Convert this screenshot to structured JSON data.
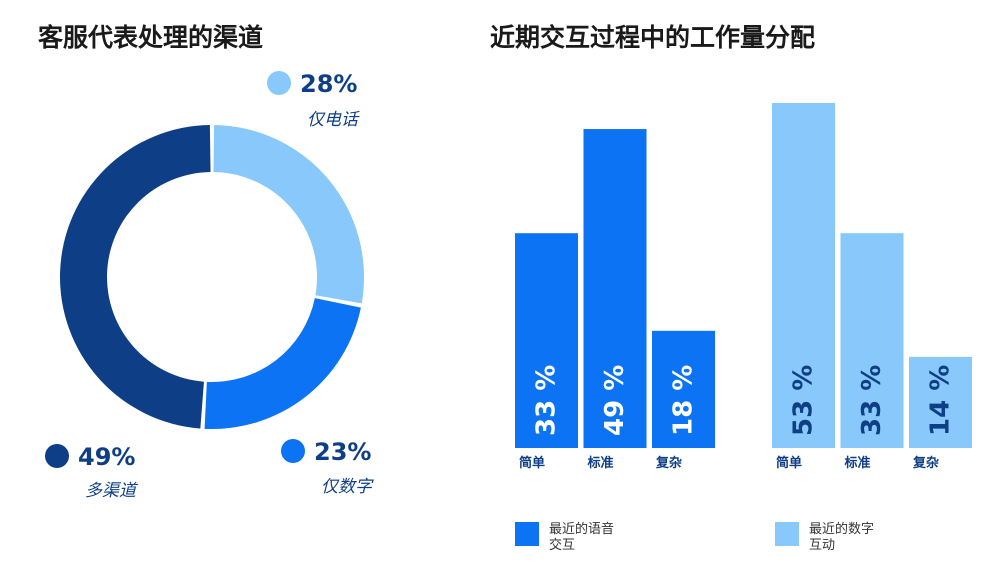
{
  "left": {
    "title": "客服代表处理的渠道"
  },
  "right": {
    "title": "近期交互过程中的工作量分配"
  },
  "colors": {
    "dark_blue": "#0E3E85",
    "bright_blue": "#0B73F4",
    "light_blue": "#88C8FB",
    "text_dark": "#1a1a1a"
  },
  "chart_data": [
    {
      "type": "pie",
      "title": "客服代表处理的渠道",
      "slices": [
        {
          "label": "仅电话",
          "value": 28,
          "value_label": "28%",
          "color": "#88C8FB"
        },
        {
          "label": "仅数字",
          "value": 23,
          "value_label": "23%",
          "color": "#0B73F4"
        },
        {
          "label": "多渠道",
          "value": 49,
          "value_label": "49%",
          "color": "#0E3E85"
        }
      ]
    },
    {
      "type": "bar",
      "title": "近期交互过程中的工作量分配",
      "categories": [
        "简单",
        "标准",
        "复杂"
      ],
      "series": [
        {
          "name": "最近的语音交互",
          "values": [
            33,
            49,
            18
          ],
          "value_labels": [
            "33 %",
            "49 %",
            "18 %"
          ],
          "color": "#0B73F4"
        },
        {
          "name": "最近的数字互动",
          "values": [
            53,
            33,
            14
          ],
          "value_labels": [
            "53 %",
            "33 %",
            "14 %"
          ],
          "color": "#88C8FB"
        }
      ],
      "legend": [
        {
          "label": "最近的语音\n交互",
          "color": "#0B73F4"
        },
        {
          "label": "最近的数字\n互动",
          "color": "#88C8FB"
        }
      ],
      "ylim": [
        0,
        55
      ]
    }
  ]
}
